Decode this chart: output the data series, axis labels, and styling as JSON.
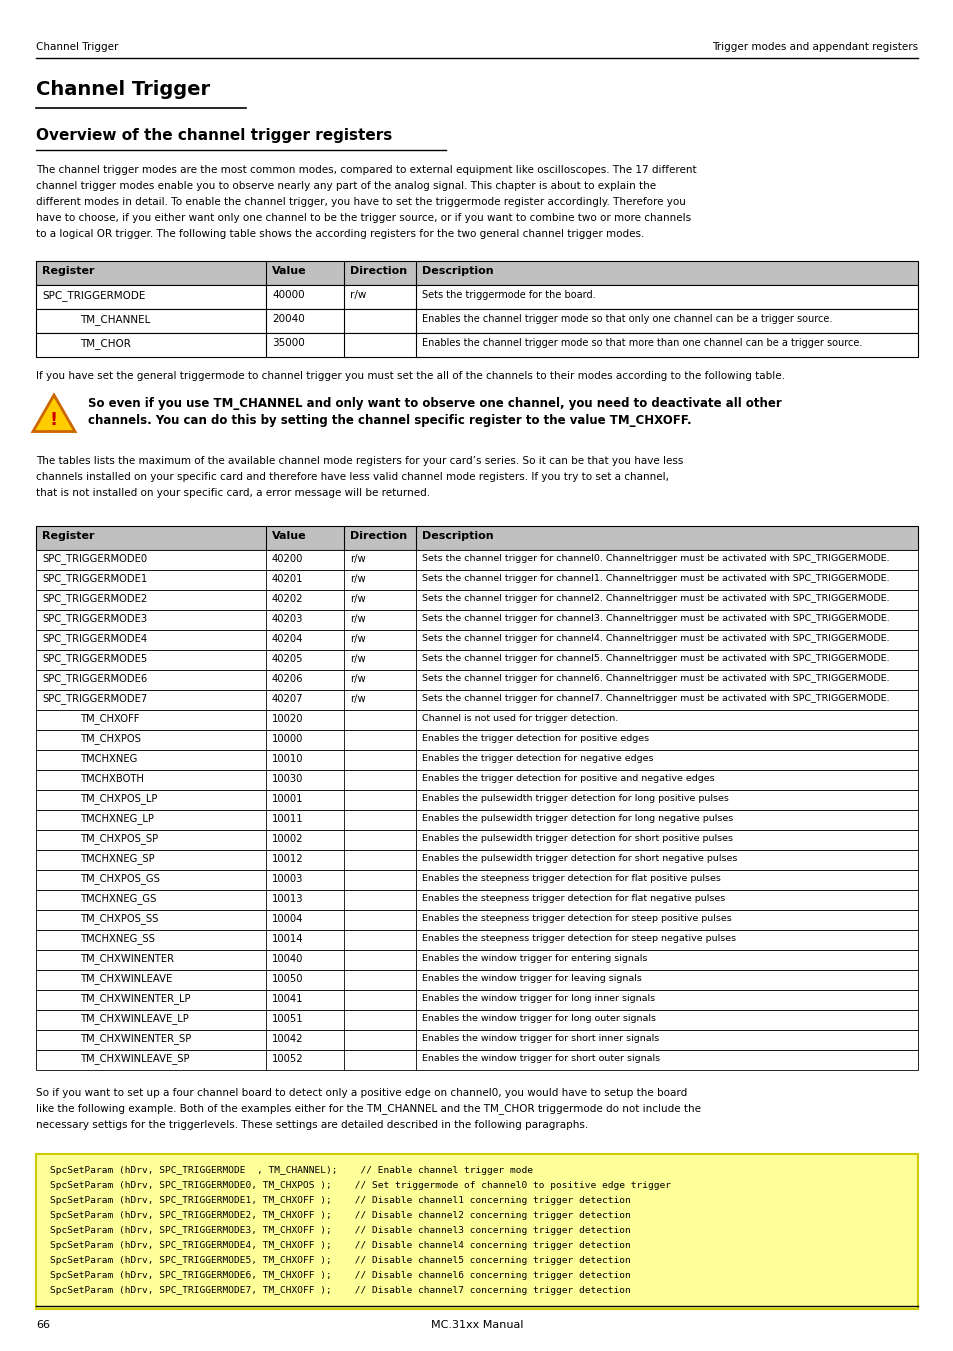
{
  "page_header_left": "Channel Trigger",
  "page_header_right": "Trigger modes and appendant registers",
  "title": "Channel Trigger",
  "subtitle": "Overview of the channel trigger registers",
  "intro_text": "The channel trigger modes are the most common modes, compared to external equipment like oscilloscopes. The 17 different channel trigger modes enable you to observe nearly any part of the analog signal. This chapter is about to explain the different modes in detail. To enable the channel trigger, you have to set the triggermode register accordingly. Therefore you have to choose, if you either want only one channel to be the trigger source, or if you want to combine two or more channels to a logical OR trigger. The following table shows the according registers for the two general channel trigger modes.",
  "table1_rows": [
    [
      "SPC_TRIGGERMODE",
      "40000",
      "r/w",
      "Sets the triggermode for the board.",
      false
    ],
    [
      "TM_CHANNEL",
      "20040",
      "",
      "Enables the channel trigger mode so that only one channel can be a trigger source.",
      true
    ],
    [
      "TM_CHOR",
      "35000",
      "",
      "Enables the channel trigger mode so that more than one channel can be a trigger source.",
      true
    ]
  ],
  "mid_text": "If you have set the general triggermode to channel trigger you must set the all of the channels to their modes according to the following table.",
  "warning_text": "So even if you use TM_CHANNEL and only want to observe one channel, you need to deactivate all other channels. You can do this by setting the channel specific register to the value TM_CHXOFF.",
  "tables_text": "The tables lists the maximum of the available channel mode registers for your card’s series. So it can be that you have less channels installed on your specific card and therefore have less valid channel mode registers. If you try to set a channel, that is not installed on your specific card, a error message will be returned.",
  "table2_rows": [
    [
      "SPC_TRIGGERMODE0",
      "40200",
      "r/w",
      "Sets the channel trigger for channel0. Channeltrigger must be activated with SPC_TRIGGERMODE.",
      false
    ],
    [
      "SPC_TRIGGERMODE1",
      "40201",
      "r/w",
      "Sets the channel trigger for channel1. Channeltrigger must be activated with SPC_TRIGGERMODE.",
      false
    ],
    [
      "SPC_TRIGGERMODE2",
      "40202",
      "r/w",
      "Sets the channel trigger for channel2. Channeltrigger must be activated with SPC_TRIGGERMODE.",
      false
    ],
    [
      "SPC_TRIGGERMODE3",
      "40203",
      "r/w",
      "Sets the channel trigger for channel3. Channeltrigger must be activated with SPC_TRIGGERMODE.",
      false
    ],
    [
      "SPC_TRIGGERMODE4",
      "40204",
      "r/w",
      "Sets the channel trigger for channel4. Channeltrigger must be activated with SPC_TRIGGERMODE.",
      false
    ],
    [
      "SPC_TRIGGERMODE5",
      "40205",
      "r/w",
      "Sets the channel trigger for channel5. Channeltrigger must be activated with SPC_TRIGGERMODE.",
      false
    ],
    [
      "SPC_TRIGGERMODE6",
      "40206",
      "r/w",
      "Sets the channel trigger for channel6. Channeltrigger must be activated with SPC_TRIGGERMODE.",
      false
    ],
    [
      "SPC_TRIGGERMODE7",
      "40207",
      "r/w",
      "Sets the channel trigger for channel7. Channeltrigger must be activated with SPC_TRIGGERMODE.",
      false
    ],
    [
      "TM_CHXOFF",
      "10020",
      "",
      "Channel is not used for trigger detection.",
      true
    ],
    [
      "TM_CHXPOS",
      "10000",
      "",
      "Enables the trigger detection for positive edges",
      true
    ],
    [
      "TMCHXNEG",
      "10010",
      "",
      "Enables the trigger detection for negative edges",
      true
    ],
    [
      "TMCHXBOTH",
      "10030",
      "",
      "Enables the trigger detection for positive and negative edges",
      true
    ],
    [
      "TM_CHXPOS_LP",
      "10001",
      "",
      "Enables the pulsewidth trigger detection for long positive pulses",
      true
    ],
    [
      "TMCHXNEG_LP",
      "10011",
      "",
      "Enables the pulsewidth trigger detection for long negative pulses",
      true
    ],
    [
      "TM_CHXPOS_SP",
      "10002",
      "",
      "Enables the pulsewidth trigger detection for short positive pulses",
      true
    ],
    [
      "TMCHXNEG_SP",
      "10012",
      "",
      "Enables the pulsewidth trigger detection for short negative pulses",
      true
    ],
    [
      "TM_CHXPOS_GS",
      "10003",
      "",
      "Enables the steepness trigger detection for flat positive pulses",
      true
    ],
    [
      "TMCHXNEG_GS",
      "10013",
      "",
      "Enables the steepness trigger detection for flat negative pulses",
      true
    ],
    [
      "TM_CHXPOS_SS",
      "10004",
      "",
      "Enables the steepness trigger detection for steep positive pulses",
      true
    ],
    [
      "TMCHXNEG_SS",
      "10014",
      "",
      "Enables the steepness trigger detection for steep negative pulses",
      true
    ],
    [
      "TM_CHXWINENTER",
      "10040",
      "",
      "Enables the window trigger for entering signals",
      true
    ],
    [
      "TM_CHXWINLEAVE",
      "10050",
      "",
      "Enables the window trigger for leaving signals",
      true
    ],
    [
      "TM_CHXWINENTER_LP",
      "10041",
      "",
      "Enables the window trigger for long inner signals",
      true
    ],
    [
      "TM_CHXWINLEAVE_LP",
      "10051",
      "",
      "Enables the window trigger for long outer signals",
      true
    ],
    [
      "TM_CHXWINENTER_SP",
      "10042",
      "",
      "Enables the window trigger for short inner signals",
      true
    ],
    [
      "TM_CHXWINLEAVE_SP",
      "10052",
      "",
      "Enables the window trigger for short outer signals",
      true
    ]
  ],
  "outro_text": "So if you want to set up a four channel board to detect only a positive edge on channel0, you would have to setup the board like the following example. Both of the examples either for the TM_CHANNEL and the TM_CHOR triggermode do not include the necessary settigs for the triggerlevels. These settings are detailed described in the following paragraphs.",
  "code_lines": [
    "SpcSetParam (hDrv, SPC_TRIGGERMODE  , TM_CHANNEL);    // Enable channel trigger mode",
    "SpcSetParam (hDrv, SPC_TRIGGERMODE0, TM_CHXPOS );    // Set triggermode of channel0 to positive edge trigger",
    "SpcSetParam (hDrv, SPC_TRIGGERMODE1, TM_CHXOFF );    // Disable channel1 concerning trigger detection",
    "SpcSetParam (hDrv, SPC_TRIGGERMODE2, TM_CHXOFF );    // Disable channel2 concerning trigger detection",
    "SpcSetParam (hDrv, SPC_TRIGGERMODE3, TM_CHXOFF );    // Disable channel3 concerning trigger detection",
    "SpcSetParam (hDrv, SPC_TRIGGERMODE4, TM_CHXOFF );    // Disable channel4 concerning trigger detection",
    "SpcSetParam (hDrv, SPC_TRIGGERMODE5, TM_CHXOFF );    // Disable channel5 concerning trigger detection",
    "SpcSetParam (hDrv, SPC_TRIGGERMODE6, TM_CHXOFF );    // Disable channel6 concerning trigger detection",
    "SpcSetParam (hDrv, SPC_TRIGGERMODE7, TM_CHXOFF );    // Disable channel7 concerning trigger detection"
  ],
  "page_number": "66",
  "page_footer_center": "MC.31xx Manual",
  "bg_color": "#ffffff",
  "header_bg": "#c0c0c0",
  "table_border": "#000000",
  "code_bg": "#ffff99",
  "text_color": "#000000"
}
